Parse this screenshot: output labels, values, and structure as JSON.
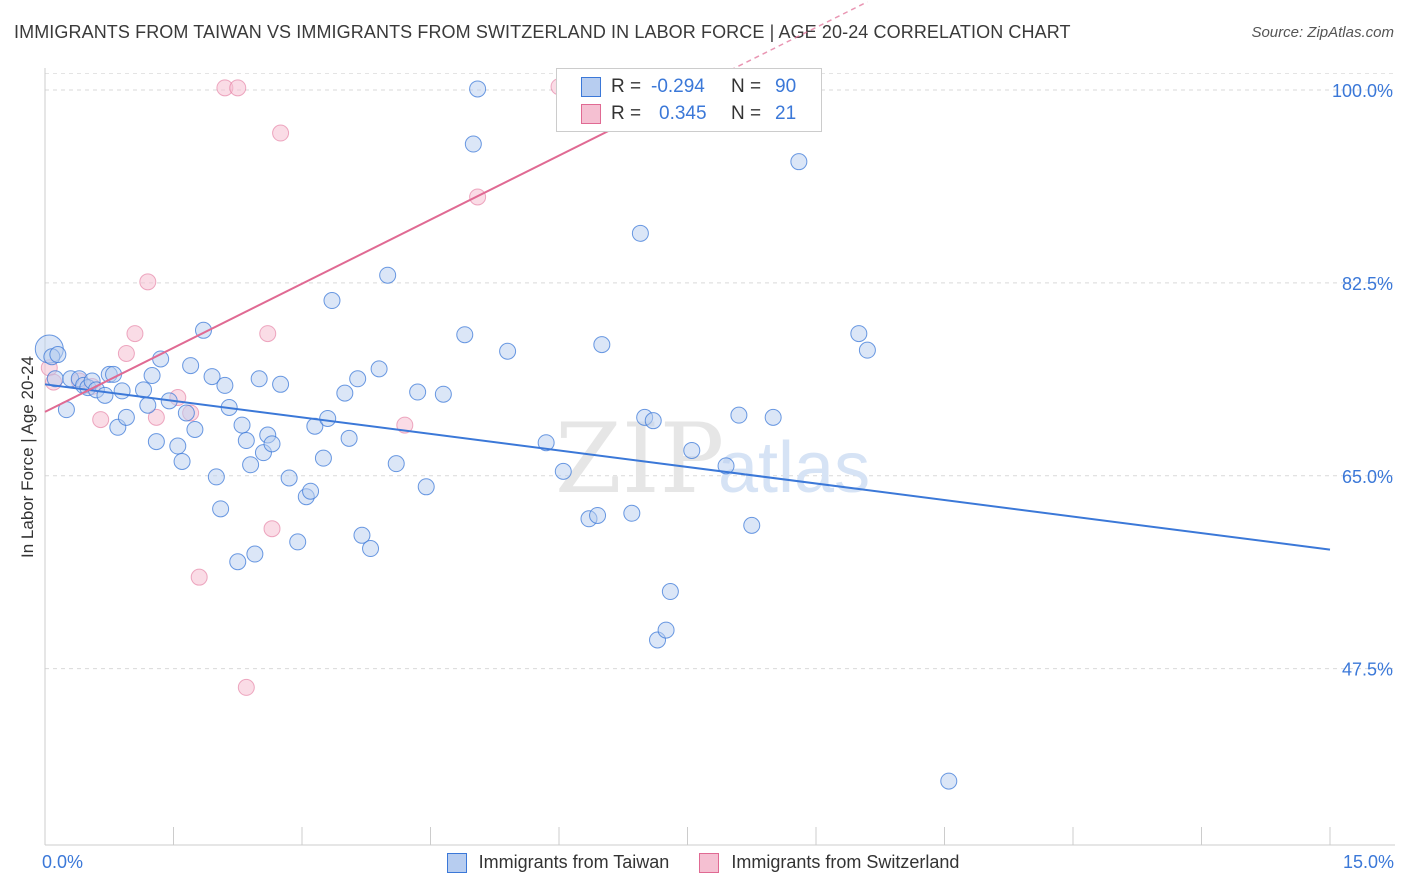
{
  "header": {
    "title": "IMMIGRANTS FROM TAIWAN VS IMMIGRANTS FROM SWITZERLAND IN LABOR FORCE | AGE 20-24 CORRELATION CHART",
    "source": "Source: ZipAtlas.com"
  },
  "watermark": {
    "zip": "ZIP",
    "atlas": "atlas"
  },
  "legend": {
    "series": [
      {
        "r_label": "R =",
        "r_value": "-0.294",
        "n_label": "N =",
        "n_value": "90"
      },
      {
        "r_label": "R =",
        "r_value": "0.345",
        "n_label": "N =",
        "n_value": "21"
      }
    ]
  },
  "bottom_legend": {
    "taiwan": "Immigrants from Taiwan",
    "switzerland": "Immigrants from Switzerland"
  },
  "chart_data": {
    "type": "scatter",
    "title": "IMMIGRANTS FROM TAIWAN VS IMMIGRANTS FROM SWITZERLAND IN LABOR FORCE | AGE 20-24 CORRELATION CHART",
    "xlabel": "",
    "ylabel": "In Labor Force | Age 20-24",
    "xlim": [
      0,
      15
    ],
    "ylim": [
      31.5,
      102
    ],
    "x_tick_labels": [
      "0.0%",
      "15.0%"
    ],
    "y_ticks": [
      47.5,
      65.0,
      82.5,
      100.0
    ],
    "y_tick_labels": [
      "47.5%",
      "65.0%",
      "82.5%",
      "100.0%"
    ],
    "grid": "horizontal dashed",
    "colors": {
      "taiwan": "#3b78d8",
      "taiwan_fill": "#b7cdf0",
      "switzerland": "#e06a93",
      "switzerland_fill": "#f5c0d2"
    },
    "series": [
      {
        "name": "Immigrants from Taiwan",
        "points": [
          [
            0.05,
            76.5
          ],
          [
            0.08,
            75.8
          ],
          [
            0.12,
            73.8
          ],
          [
            0.15,
            76
          ],
          [
            0.25,
            71
          ],
          [
            0.3,
            73.8
          ],
          [
            0.4,
            73.8
          ],
          [
            0.45,
            73.2
          ],
          [
            0.5,
            73
          ],
          [
            0.55,
            73.6
          ],
          [
            0.6,
            72.8
          ],
          [
            0.7,
            72.3
          ],
          [
            0.75,
            74.2
          ],
          [
            0.8,
            74.2
          ],
          [
            0.85,
            69.4
          ],
          [
            0.9,
            72.7
          ],
          [
            0.95,
            70.3
          ],
          [
            1.15,
            72.8
          ],
          [
            1.2,
            71.4
          ],
          [
            1.25,
            74.1
          ],
          [
            1.3,
            68.1
          ],
          [
            1.35,
            75.6
          ],
          [
            1.45,
            71.8
          ],
          [
            1.55,
            67.7
          ],
          [
            1.6,
            66.3
          ],
          [
            1.65,
            70.7
          ],
          [
            1.7,
            75
          ],
          [
            1.75,
            69.2
          ],
          [
            1.85,
            78.2
          ],
          [
            1.95,
            74
          ],
          [
            2.0,
            64.9
          ],
          [
            2.05,
            62
          ],
          [
            2.1,
            73.2
          ],
          [
            2.15,
            71.2
          ],
          [
            2.25,
            57.2
          ],
          [
            2.3,
            69.6
          ],
          [
            2.35,
            68.2
          ],
          [
            2.4,
            66
          ],
          [
            2.45,
            57.9
          ],
          [
            2.5,
            73.8
          ],
          [
            2.55,
            67.1
          ],
          [
            2.6,
            68.7
          ],
          [
            2.65,
            67.9
          ],
          [
            2.75,
            73.3
          ],
          [
            2.85,
            64.8
          ],
          [
            2.95,
            59
          ],
          [
            3.05,
            63.1
          ],
          [
            3.1,
            63.6
          ],
          [
            3.15,
            69.5
          ],
          [
            3.25,
            66.6
          ],
          [
            3.3,
            70.2
          ],
          [
            3.35,
            80.9
          ],
          [
            3.5,
            72.5
          ],
          [
            3.55,
            68.4
          ],
          [
            3.65,
            73.8
          ],
          [
            3.7,
            59.6
          ],
          [
            3.8,
            58.4
          ],
          [
            3.9,
            74.7
          ],
          [
            4.0,
            83.2
          ],
          [
            4.1,
            66.1
          ],
          [
            4.35,
            72.6
          ],
          [
            4.45,
            64
          ],
          [
            4.65,
            72.4
          ],
          [
            4.9,
            77.8
          ],
          [
            5.0,
            95.1
          ],
          [
            5.05,
            100.1
          ],
          [
            5.4,
            76.3
          ],
          [
            5.85,
            68
          ],
          [
            6.05,
            65.4
          ],
          [
            6.35,
            61.1
          ],
          [
            6.5,
            76.9
          ],
          [
            6.45,
            61.4
          ],
          [
            6.85,
            61.6
          ],
          [
            6.95,
            87
          ],
          [
            7.0,
            70.3
          ],
          [
            7.1,
            70
          ],
          [
            7.15,
            50.1
          ],
          [
            7.25,
            51
          ],
          [
            7.3,
            54.5
          ],
          [
            7.55,
            67.3
          ],
          [
            7.75,
            100.2
          ],
          [
            7.95,
            65.9
          ],
          [
            8.1,
            70.5
          ],
          [
            8.25,
            60.5
          ],
          [
            8.5,
            70.3
          ],
          [
            8.8,
            93.5
          ],
          [
            9.5,
            77.9
          ],
          [
            9.6,
            76.4
          ],
          [
            10.55,
            37.3
          ]
        ]
      },
      {
        "name": "Immigrants from Switzerland",
        "points": [
          [
            0.05,
            74.8
          ],
          [
            0.1,
            73.5
          ],
          [
            0.4,
            73.6
          ],
          [
            0.55,
            73.1
          ],
          [
            0.65,
            70.1
          ],
          [
            0.95,
            76.1
          ],
          [
            1.05,
            77.9
          ],
          [
            1.2,
            82.6
          ],
          [
            1.3,
            70.3
          ],
          [
            1.55,
            72.1
          ],
          [
            1.7,
            70.7
          ],
          [
            1.8,
            55.8
          ],
          [
            2.1,
            100.2
          ],
          [
            2.25,
            100.2
          ],
          [
            2.35,
            45.8
          ],
          [
            2.6,
            77.9
          ],
          [
            2.65,
            60.2
          ],
          [
            2.75,
            96.1
          ],
          [
            4.2,
            69.6
          ],
          [
            5.05,
            90.3
          ],
          [
            6.0,
            100.3
          ]
        ]
      }
    ],
    "trend_lines": [
      {
        "series": "Immigrants from Taiwan",
        "x": [
          0,
          15
        ],
        "y": [
          73.3,
          58.3
        ]
      },
      {
        "series": "Immigrants from Switzerland",
        "x": [
          0,
          8.0
        ],
        "y": [
          70.8,
          101.8
        ],
        "dashed_from_x": 8.0,
        "dashed_to_x": 9.6
      }
    ]
  }
}
